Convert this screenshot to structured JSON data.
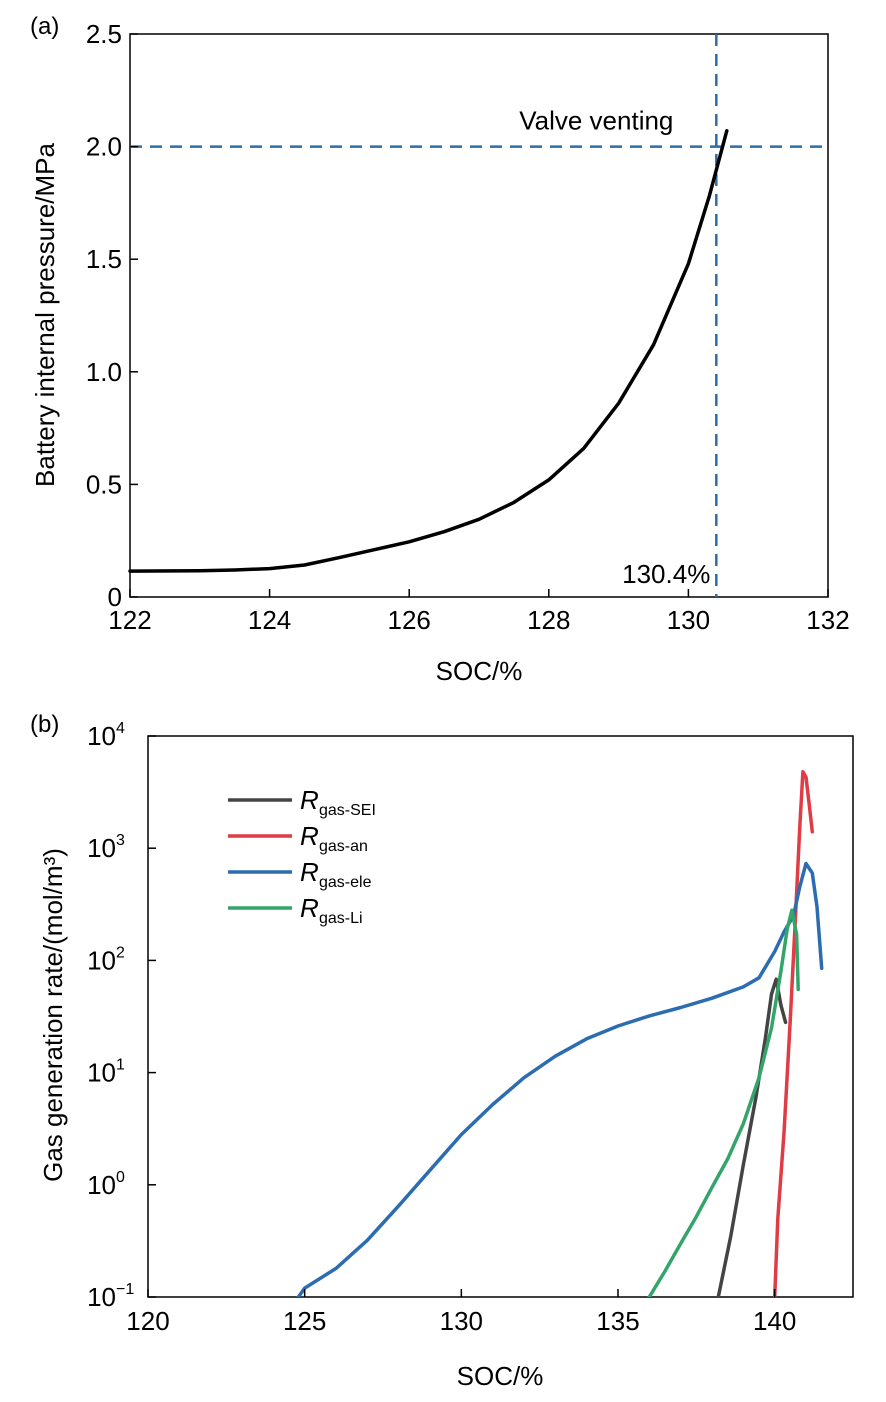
{
  "chart_data": [
    {
      "panel_label": "(a)",
      "type": "line",
      "xlabel": "SOC/%",
      "ylabel": "Battery internal pressure/MPa",
      "xlim": [
        122,
        132
      ],
      "ylim": [
        0,
        2.5
      ],
      "xticks": [
        122,
        124,
        126,
        128,
        130,
        132
      ],
      "xtick_labels": [
        "122",
        "124",
        "126",
        "128",
        "130",
        "132"
      ],
      "yticks": [
        0,
        0.5,
        1.0,
        1.5,
        2.0,
        2.5
      ],
      "ytick_labels": [
        "0",
        "0.5",
        "1.0",
        "1.5",
        "2.0",
        "2.5"
      ],
      "grid": false,
      "series": [
        {
          "name": "Battery internal pressure",
          "color": "#000000",
          "x": [
            122.0,
            123.0,
            123.5,
            124.0,
            124.5,
            125.0,
            125.5,
            126.0,
            126.5,
            127.0,
            127.5,
            128.0,
            128.5,
            129.0,
            129.5,
            130.0,
            130.3,
            130.55
          ],
          "y": [
            0.115,
            0.117,
            0.12,
            0.126,
            0.142,
            0.175,
            0.21,
            0.245,
            0.29,
            0.345,
            0.42,
            0.52,
            0.66,
            0.86,
            1.12,
            1.48,
            1.78,
            2.07
          ]
        }
      ],
      "reference_lines": {
        "horizontal": {
          "y": 2.0,
          "label": "Valve venting",
          "color": "#2e6da4"
        },
        "vertical": {
          "x": 130.4,
          "label": "130.4%",
          "color": "#2e6da4"
        }
      }
    },
    {
      "panel_label": "(b)",
      "type": "line",
      "xlabel": "SOC/%",
      "ylabel": "Gas generation rate/(mol/m³)",
      "xlim": [
        120,
        142.5
      ],
      "ylim": [
        0.1,
        10000
      ],
      "yscale": "log",
      "xticks": [
        120,
        125,
        130,
        135,
        140
      ],
      "xtick_labels": [
        "120",
        "125",
        "130",
        "135",
        "140"
      ],
      "yticks": [
        0.1,
        1,
        10,
        100,
        1000,
        10000
      ],
      "ytick_base": [
        "10",
        "10",
        "10",
        "10",
        "10",
        "10"
      ],
      "ytick_exp": [
        "−1",
        "0",
        "1",
        "2",
        "3",
        "4"
      ],
      "grid": false,
      "legend_position": "top-left",
      "series": [
        {
          "name": "R",
          "subscript": "gas-SEI",
          "color": "#444444",
          "x": [
            138.2,
            138.6,
            139.0,
            139.4,
            139.7,
            139.9,
            140.05,
            140.2,
            140.35
          ],
          "y": [
            0.1,
            0.35,
            1.5,
            6,
            20,
            50,
            68,
            40,
            28
          ]
        },
        {
          "name": "R",
          "subscript": "gas-an",
          "color": "#e03c46",
          "x": [
            140.0,
            140.1,
            140.3,
            140.5,
            140.65,
            140.8,
            140.9,
            141.0,
            141.1,
            141.2
          ],
          "y": [
            0.1,
            0.5,
            3,
            30,
            200,
            1500,
            4800,
            4300,
            2500,
            1400
          ]
        },
        {
          "name": "R",
          "subscript": "gas-ele",
          "color": "#2c6cb0",
          "x": [
            124.8,
            125.0,
            126.0,
            127.0,
            128.0,
            129.0,
            130.0,
            131.0,
            132.0,
            133.0,
            134.0,
            135.0,
            136.0,
            137.0,
            138.0,
            139.0,
            139.5,
            140.0,
            140.3,
            140.6,
            140.8,
            141.0,
            141.2,
            141.35,
            141.5
          ],
          "y": [
            0.1,
            0.12,
            0.18,
            0.32,
            0.65,
            1.35,
            2.8,
            5.2,
            9,
            14,
            20,
            26,
            32,
            38,
            46,
            58,
            70,
            120,
            180,
            250,
            450,
            730,
            600,
            300,
            85
          ]
        },
        {
          "name": "R",
          "subscript": "gas-Li",
          "color": "#33a56a",
          "x": [
            136.0,
            136.5,
            137.0,
            137.5,
            138.0,
            138.5,
            139.0,
            139.5,
            139.9,
            140.2,
            140.4,
            140.55,
            140.7,
            140.75
          ],
          "y": [
            0.1,
            0.17,
            0.3,
            0.52,
            0.95,
            1.7,
            3.5,
            9,
            25,
            80,
            190,
            280,
            170,
            55
          ]
        }
      ]
    }
  ]
}
